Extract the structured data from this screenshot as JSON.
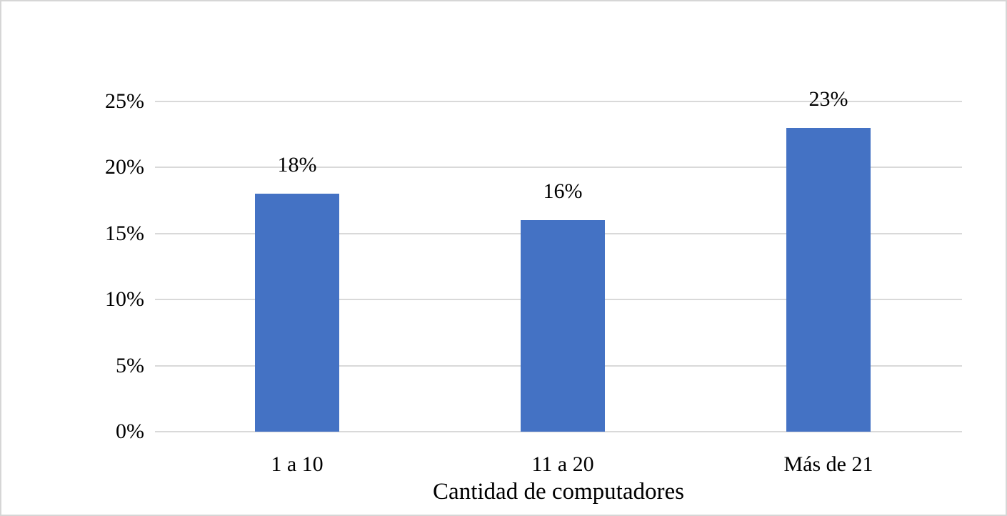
{
  "chart_data": {
    "type": "bar",
    "title": "",
    "categories": [
      "1 a 10",
      "11 a 20",
      "Más de 21"
    ],
    "values": [
      18,
      16,
      23
    ],
    "value_labels": [
      "18%",
      "16%",
      "23%"
    ],
    "xlabel": "Cantidad de computadores",
    "ylabel": "",
    "ylim": [
      0,
      25
    ],
    "ytick_step": 5,
    "ytick_labels": [
      "0%",
      "5%",
      "10%",
      "15%",
      "20%",
      "25%"
    ],
    "grid": true,
    "legend_position": "none",
    "bar_color": "#4472C4",
    "gridline_color": "#D9D9D9",
    "text_color": "#000000",
    "background_color": "#FFFFFF",
    "border_color": "#D6D6D6"
  }
}
